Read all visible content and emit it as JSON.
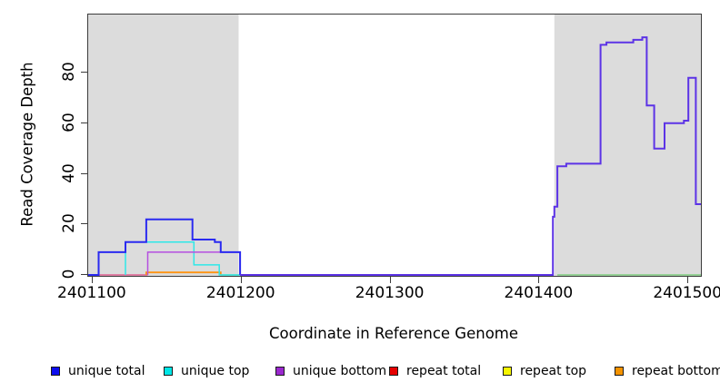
{
  "figure": {
    "y_axis": {
      "label": "Read Coverage Depth"
    },
    "x_axis": {
      "label": "Coordinate in Reference Genome"
    },
    "legend": [
      {
        "label": "unique total",
        "color": "#0d0dee"
      },
      {
        "label": "unique top",
        "color": "#00e6e6"
      },
      {
        "label": "unique bottom",
        "color": "#9b28cf"
      },
      {
        "label": "repeat total",
        "color": "#e60000"
      },
      {
        "label": "repeat top",
        "color": "#f5f500"
      },
      {
        "label": "repeat bottom",
        "color": "#f59300"
      }
    ]
  },
  "chart_data": {
    "type": "line",
    "title": "",
    "xlabel": "Coordinate in Reference Genome",
    "ylabel": "Read Coverage Depth",
    "xlim": [
      2401097,
      2401508.4
    ],
    "ylim": [
      0,
      103
    ],
    "x_ticks": [
      2401100,
      2401200,
      2401300,
      2401400,
      2401500
    ],
    "y_ticks": [
      0,
      20,
      40,
      60,
      80
    ],
    "grid": false,
    "legend_position": "bottom",
    "region_color": "#dcdcdc",
    "highlight_regions": [
      {
        "x0": 2401097,
        "x1": 2401198
      },
      {
        "x0": 2401410,
        "x1": 2401508.4
      }
    ],
    "series": [
      {
        "name": "repeat-total-baseline",
        "color": "#e06090",
        "width": 1.4,
        "points": [
          [
            2401097,
            0
          ],
          [
            2401137,
            0
          ]
        ]
      },
      {
        "name": "repeat-bottom",
        "color": "#ff9412",
        "width": 1.8,
        "points": [
          [
            2401136,
            0
          ],
          [
            2401136,
            1
          ],
          [
            2401186,
            1
          ],
          [
            2401186,
            0
          ]
        ]
      },
      {
        "name": "overlap-baseline-left",
        "color": "#7fcc7f",
        "width": 1.4,
        "points": [
          [
            2401186,
            0
          ],
          [
            2401200,
            0
          ]
        ]
      },
      {
        "name": "overlap-baseline-right",
        "color": "#7fcc7f",
        "width": 1.4,
        "points": [
          [
            2401412,
            0
          ],
          [
            2401508.4,
            0
          ]
        ]
      },
      {
        "name": "unique-top",
        "color": "#2ee8e8",
        "width": 1.5,
        "points": [
          [
            2401122,
            0
          ],
          [
            2401122,
            13
          ],
          [
            2401168,
            13
          ],
          [
            2401168,
            4
          ],
          [
            2401185,
            4
          ],
          [
            2401185,
            0
          ],
          [
            2401199,
            0
          ]
        ]
      },
      {
        "name": "unique-bottom-left",
        "color": "#b54fe0",
        "width": 1.5,
        "points": [
          [
            2401137,
            0
          ],
          [
            2401137,
            9
          ],
          [
            2401199,
            9
          ],
          [
            2401199,
            0
          ]
        ]
      },
      {
        "name": "unique-total-left",
        "color": "#2a2af0",
        "width": 2,
        "points": [
          [
            2401097,
            0
          ],
          [
            2401104,
            0
          ],
          [
            2401104,
            9
          ],
          [
            2401122,
            9
          ],
          [
            2401122,
            13
          ],
          [
            2401136,
            13
          ],
          [
            2401136,
            22
          ],
          [
            2401167,
            22
          ],
          [
            2401167,
            14
          ],
          [
            2401182,
            14
          ],
          [
            2401182,
            13
          ],
          [
            2401186,
            13
          ],
          [
            2401186,
            9
          ],
          [
            2401199,
            9
          ],
          [
            2401199,
            0
          ]
        ]
      },
      {
        "name": "unique-total-and-bottom-right",
        "color": "#5c33e6",
        "width": 2,
        "points": [
          [
            2401199,
            0
          ],
          [
            2401409,
            0
          ],
          [
            2401409,
            23
          ],
          [
            2401410,
            23
          ],
          [
            2401410,
            27
          ],
          [
            2401412,
            27
          ],
          [
            2401412,
            43
          ],
          [
            2401418,
            43
          ],
          [
            2401418,
            44
          ],
          [
            2401441,
            44
          ],
          [
            2401441,
            91
          ],
          [
            2401445,
            91
          ],
          [
            2401445,
            92
          ],
          [
            2401463,
            92
          ],
          [
            2401463,
            93
          ],
          [
            2401469,
            93
          ],
          [
            2401469,
            94
          ],
          [
            2401472,
            94
          ],
          [
            2401472,
            67
          ],
          [
            2401477,
            67
          ],
          [
            2401477,
            50
          ],
          [
            2401484,
            50
          ],
          [
            2401484,
            60
          ],
          [
            2401497,
            60
          ],
          [
            2401497,
            61
          ],
          [
            2401500,
            61
          ],
          [
            2401500,
            78
          ],
          [
            2401505,
            78
          ],
          [
            2401505,
            28
          ],
          [
            2401508.4,
            28
          ]
        ]
      }
    ]
  }
}
